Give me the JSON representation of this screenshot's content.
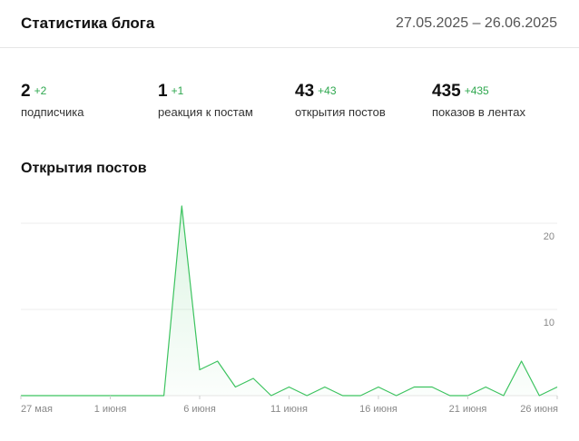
{
  "header": {
    "title": "Статистика блога",
    "date_range": "27.05.2025 – 26.06.2025"
  },
  "stats": [
    {
      "value": "2",
      "delta": "+2",
      "label": "подписчика"
    },
    {
      "value": "1",
      "delta": "+1",
      "label": "реакция к постам"
    },
    {
      "value": "43",
      "delta": "+43",
      "label": "открытия постов"
    },
    {
      "value": "435",
      "delta": "+435",
      "label": "показов в лентах"
    }
  ],
  "colors": {
    "accent": "#2fa84f",
    "line": "#3cc35f"
  },
  "chart_data": {
    "type": "line",
    "title": "Открытия постов",
    "x_labels": [
      "27 мая",
      "1 июня",
      "6 июня",
      "11 июня",
      "16 июня",
      "21 июня",
      "26 июня"
    ],
    "y_ticks": [
      "10",
      "20"
    ],
    "ylim": [
      0,
      25
    ],
    "grid": true,
    "series": [
      {
        "values": [
          0,
          0,
          0,
          0,
          0,
          0,
          0,
          0,
          0,
          22,
          3,
          4,
          1,
          2,
          0,
          1,
          0,
          1,
          0,
          0,
          1,
          0,
          1,
          1,
          0,
          0,
          1,
          0,
          4,
          0,
          1
        ]
      }
    ]
  }
}
